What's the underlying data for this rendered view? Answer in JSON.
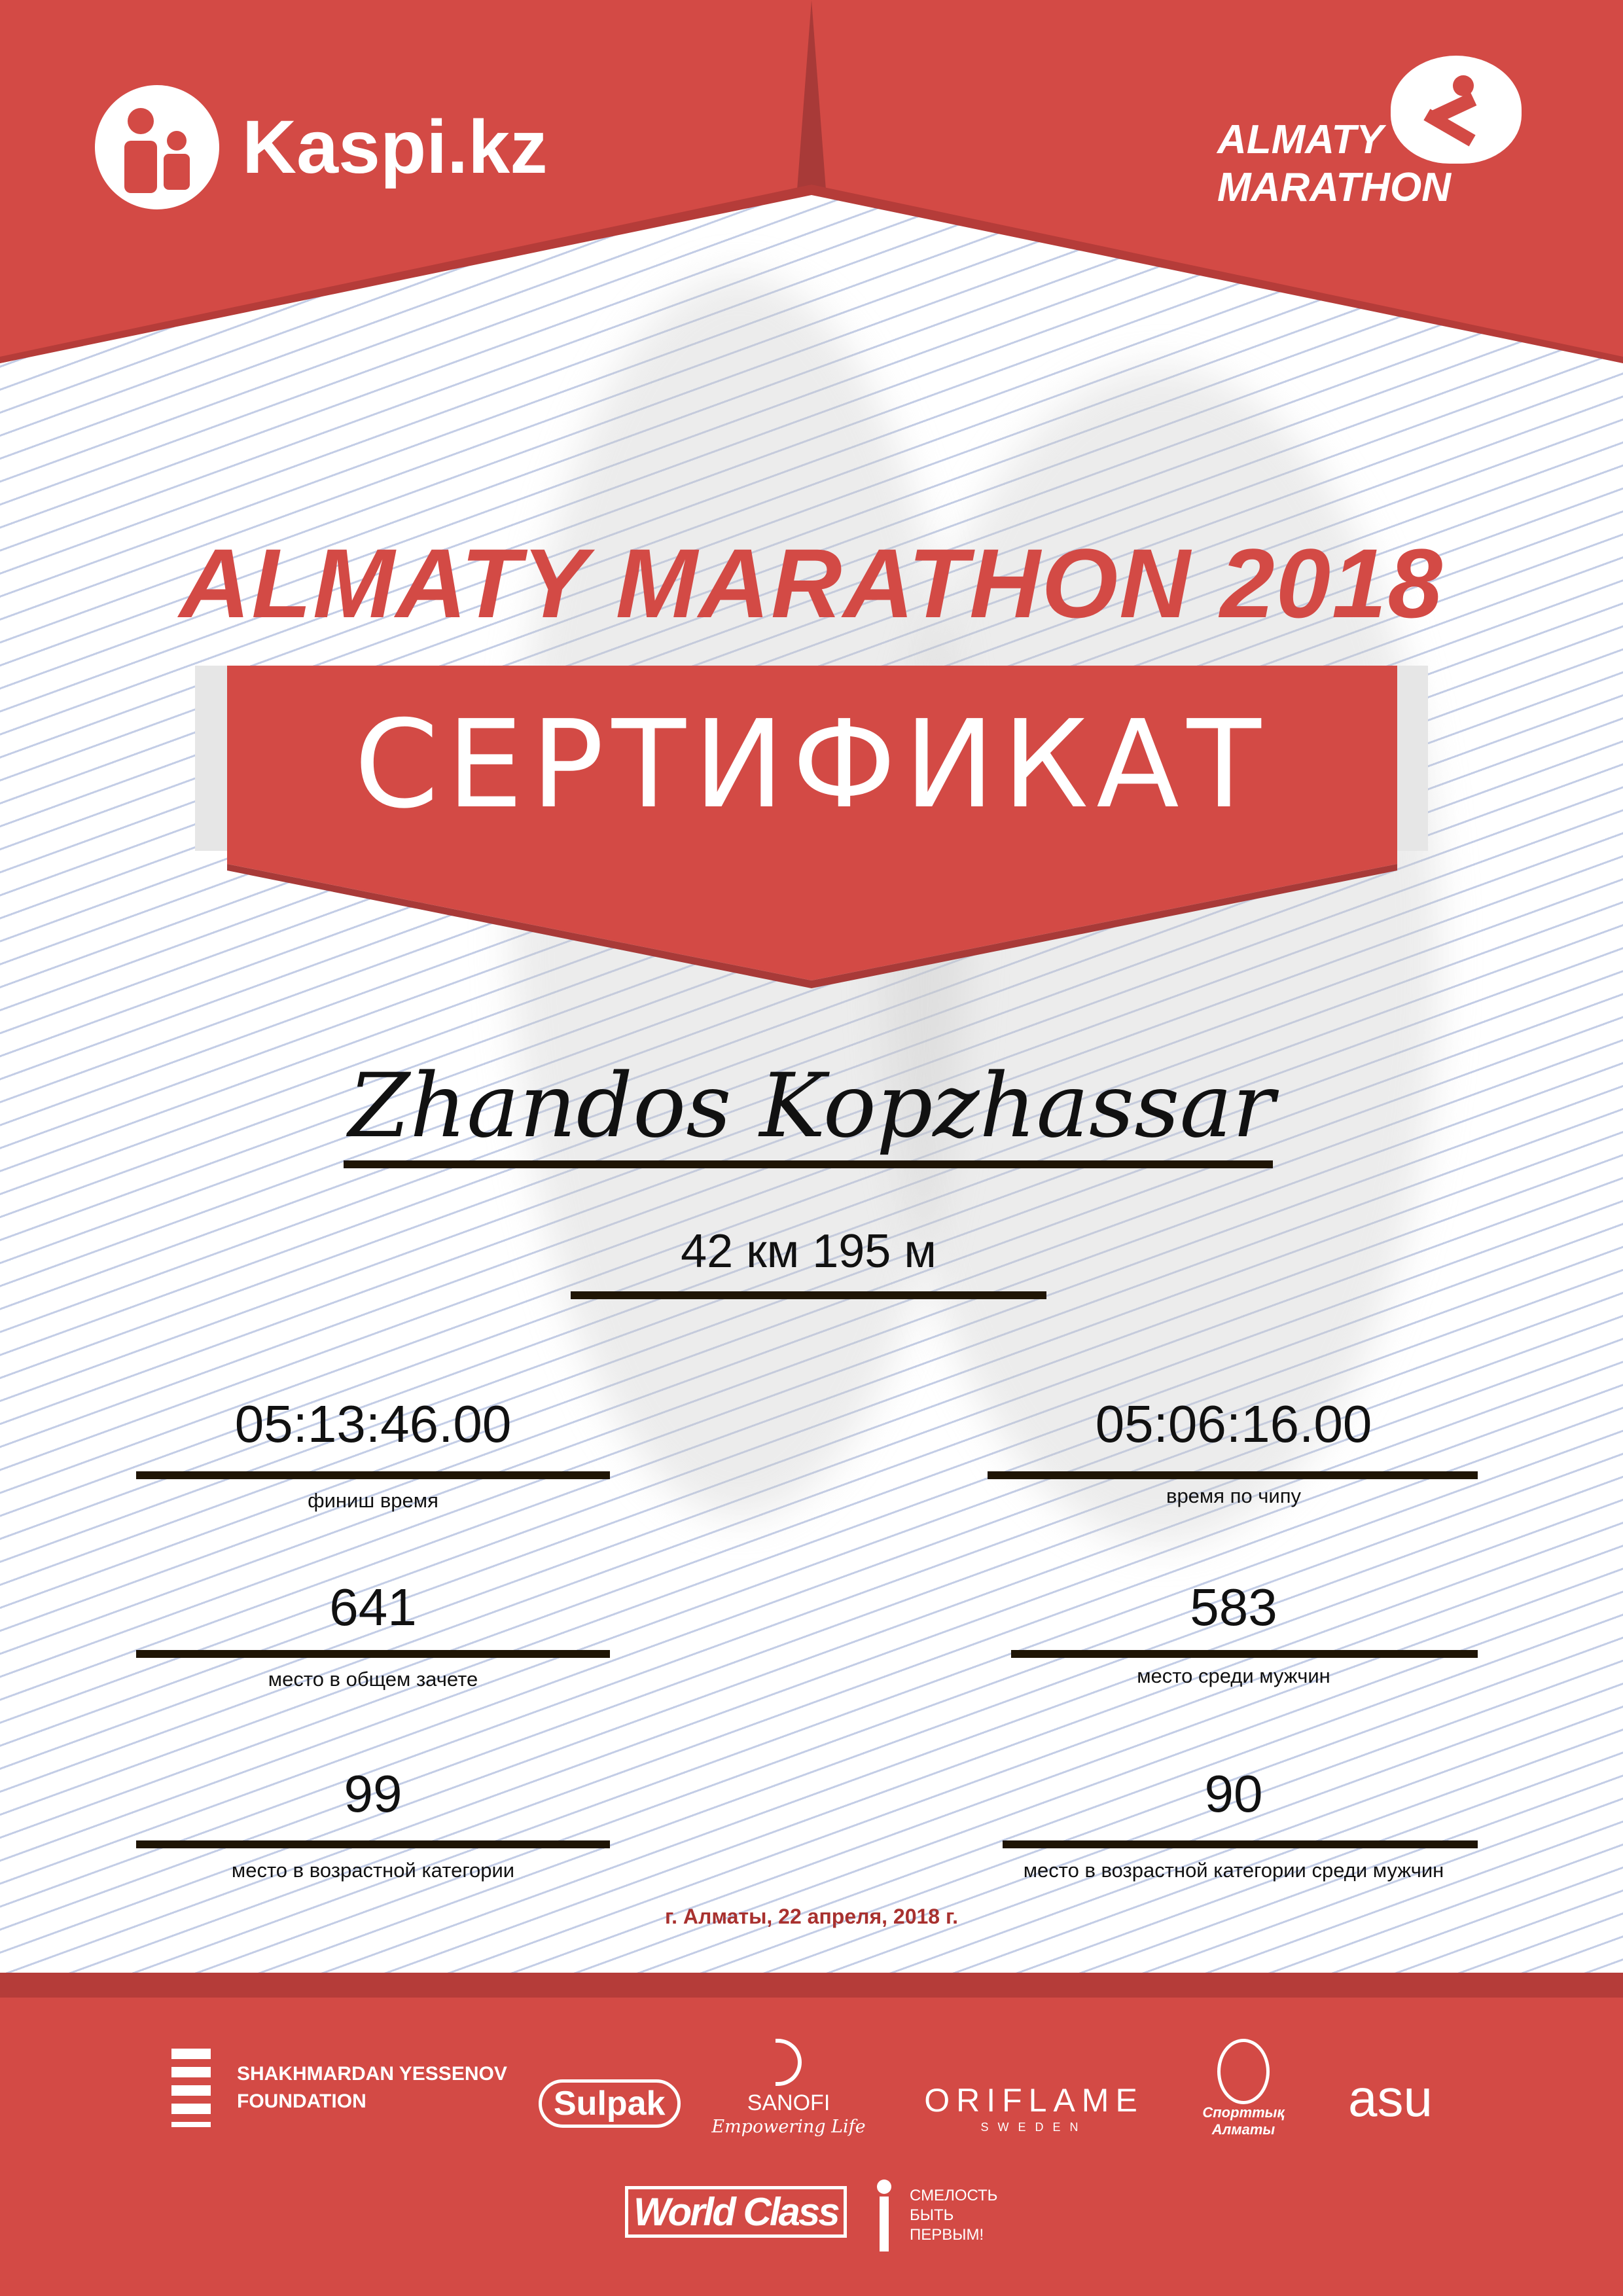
{
  "header": {
    "kaspi_logo": "Kaspi.kz",
    "marathon_logo": [
      "ALMATY",
      "MARATHON"
    ]
  },
  "title": "ALMATY MARATHON 2018",
  "banner": "СЕРТИФИКАТ",
  "participant_name": "Zhandos Kopzhassar",
  "distance": "42 км 195 м",
  "stats": [
    {
      "value": "05:13:46.00",
      "label": "финиш время"
    },
    {
      "value": "05:06:16.00",
      "label": "время по чипу"
    },
    {
      "value": "641",
      "label": "место в общем зачете"
    },
    {
      "value": "583",
      "label": "место среди мужчин"
    },
    {
      "value": "99",
      "label": "место в возрастной категории"
    },
    {
      "value": "90",
      "label": "место в возрастной категории среди мужчин"
    }
  ],
  "date": "г. Алматы, 22 апреля, 2018 г.",
  "sponsors": {
    "yessenov": [
      "SHAKHMARDAN YESSENOV",
      "FOUNDATION"
    ],
    "sulpak": "Sulpak",
    "sanofi": [
      "SANOFI",
      "Empowering Life"
    ],
    "oriflame": [
      "ORIFLAME",
      "SWEDEN"
    ],
    "sport_almaty": [
      "Спорттық",
      "Алматы"
    ],
    "asu": "asu",
    "world_class": "World Class",
    "fund": [
      "СМЕЛОСТЬ",
      "БЫТЬ",
      "ПЕРВЫМ!"
    ]
  },
  "colors": {
    "primary_red": "#d34a45",
    "dark_red": "#a83a38",
    "date_red": "#a8312f",
    "rule": "#1f1505"
  }
}
